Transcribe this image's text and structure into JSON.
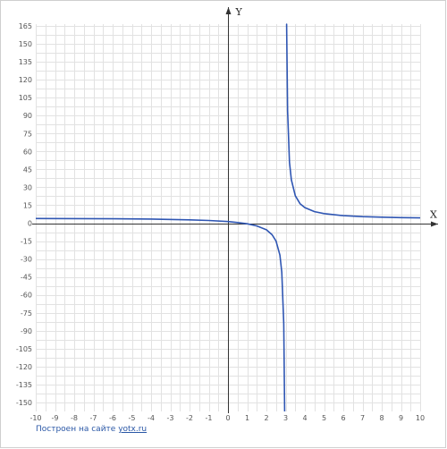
{
  "chart_data": {
    "type": "line",
    "xlabel": "X",
    "ylabel": "Y",
    "xlim": [
      -10,
      10
    ],
    "ylim": [
      -160,
      165
    ],
    "x_ticks": [
      "-10",
      "-9",
      "-8",
      "-7",
      "-6",
      "-5",
      "-4",
      "-3",
      "-2",
      "-1",
      "0",
      "1",
      "2",
      "3",
      "4",
      "5",
      "6",
      "7",
      "8",
      "9",
      "10"
    ],
    "y_ticks": [
      "165",
      "150",
      "135",
      "120",
      "105",
      "90",
      "75",
      "60",
      "45",
      "30",
      "15",
      "0",
      "-15",
      "-30",
      "-45",
      "-60",
      "-75",
      "-90",
      "-105",
      "-120",
      "-135",
      "-150"
    ],
    "grid": true,
    "vertical_asymptote_x": 3,
    "series": [
      {
        "color": "#2f56b3",
        "points_left": [
          [
            -10,
            3.94
          ],
          [
            -8,
            3.85
          ],
          [
            -6,
            3.7
          ],
          [
            -4,
            3.43
          ],
          [
            -2,
            2.8
          ],
          [
            -1,
            2.25
          ],
          [
            0,
            1.33
          ],
          [
            0.5,
            0.55
          ],
          [
            1,
            -0.5
          ],
          [
            1.5,
            -2.33
          ],
          [
            2,
            -5.5
          ],
          [
            2.3,
            -9.7
          ],
          [
            2.5,
            -15
          ],
          [
            2.7,
            -26.7
          ],
          [
            2.8,
            -41
          ],
          [
            2.9,
            -84
          ],
          [
            2.95,
            -169
          ]
        ],
        "points_right": [
          [
            3.03,
            300
          ],
          [
            3.05,
            181
          ],
          [
            3.1,
            94
          ],
          [
            3.2,
            51
          ],
          [
            3.3,
            36.3
          ],
          [
            3.5,
            23
          ],
          [
            3.75,
            16.3
          ],
          [
            4,
            13
          ],
          [
            4.5,
            9.67
          ],
          [
            5,
            8
          ],
          [
            6,
            6.33
          ],
          [
            7,
            5.5
          ],
          [
            8,
            5
          ],
          [
            9,
            4.67
          ],
          [
            10,
            4.43
          ]
        ]
      }
    ]
  },
  "footer": {
    "prefix": "Построен на сайте ",
    "link": "yotx.ru"
  }
}
